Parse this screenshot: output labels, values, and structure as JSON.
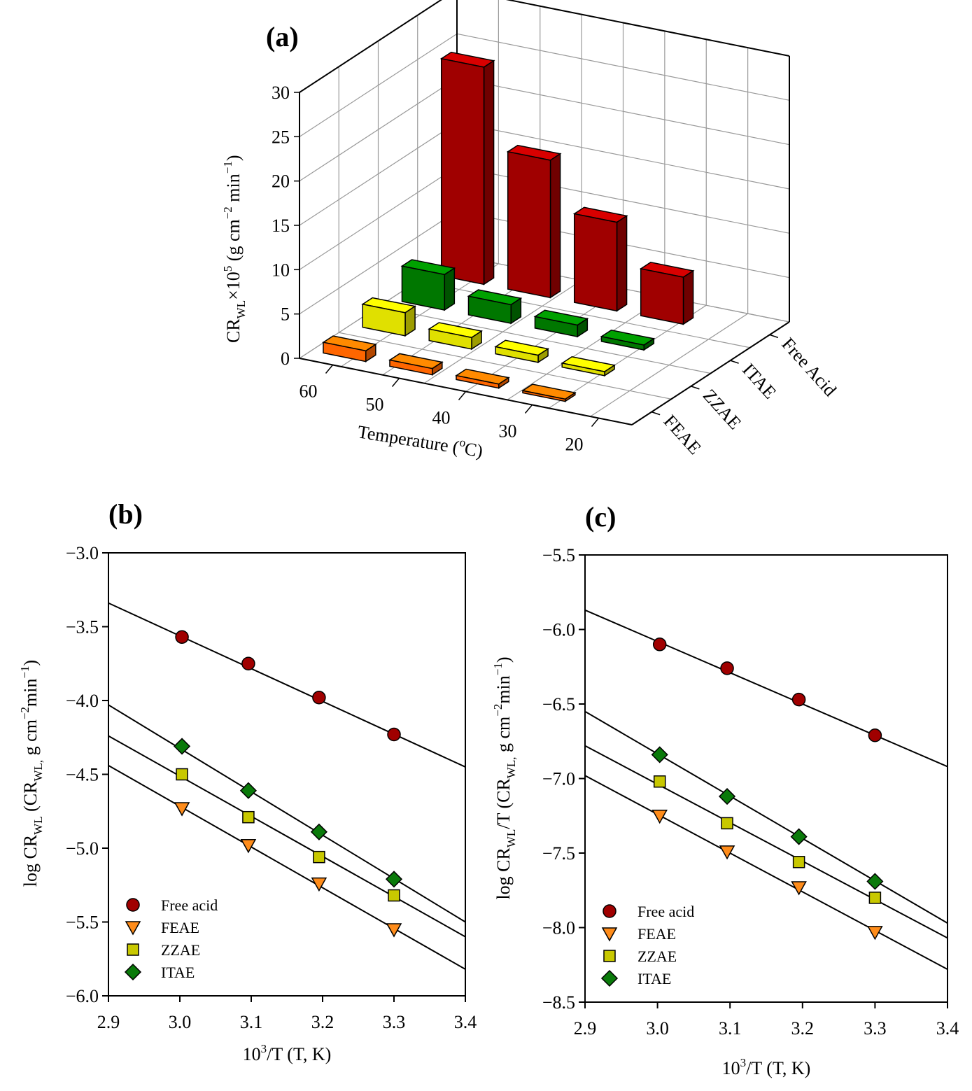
{
  "chart_data": [
    {
      "panel": "(a)",
      "type": "bar",
      "view": "3d",
      "zlabel": {
        "main": "CR",
        "sub": "WL",
        "mid": "×10",
        "sup": "5",
        "rest1": " (g cm",
        "sup2": "−2",
        "rest2": " min",
        "sup3": "−1",
        "rest3": ")"
      },
      "xlabel": {
        "main": "Temperature (",
        "sup": "o",
        "rest": "C)"
      },
      "zlim": [
        0,
        30
      ],
      "zticks": [
        "0",
        "5",
        "10",
        "15",
        "20",
        "25",
        "30"
      ],
      "categories": [
        "60",
        "50",
        "40",
        "30",
        "20"
      ],
      "series": [
        {
          "name": "FEAE",
          "color": "#ff6600",
          "values": [
            1.2,
            0.7,
            0.45,
            0.25,
            0.0
          ]
        },
        {
          "name": "ZZAE",
          "color": "#e0e000",
          "values": [
            2.6,
            1.3,
            0.8,
            0.45,
            0.0
          ]
        },
        {
          "name": "ITAE",
          "color": "#007700",
          "values": [
            4.0,
            2.1,
            1.3,
            0.55,
            0.0
          ]
        },
        {
          "name": "Free Acid",
          "color": "#a00000",
          "values": [
            24.5,
            15.5,
            10.0,
            5.3,
            0.0
          ]
        }
      ],
      "series_labels": [
        "Free Acid",
        "ITAE",
        "ZZAE",
        "FEAE"
      ]
    },
    {
      "panel": "(b)",
      "type": "scatter",
      "xlabel": {
        "main": "10",
        "sup": "3",
        "rest": "/T (T, K)"
      },
      "ylabel": {
        "main": "log CR",
        "sub": "WL",
        "rest1": " (CR",
        "sub2": "WL,",
        "rest2": " g cm",
        "sup": "−2",
        "rest3": "min",
        "sup2": "−1",
        "rest4": ")"
      },
      "xlim": [
        2.9,
        3.4
      ],
      "ylim": [
        -6.0,
        -3.0
      ],
      "xticks": [
        "2.9",
        "3.0",
        "3.1",
        "3.2",
        "3.3",
        "3.4"
      ],
      "yticks": [
        "−3.0",
        "−3.5",
        "−4.0",
        "−4.5",
        "−5.0",
        "−5.5",
        "−6.0"
      ],
      "x": [
        3.003,
        3.096,
        3.195,
        3.3
      ],
      "series": [
        {
          "name": "Free acid",
          "marker": "circle",
          "color": "#a00000",
          "values": [
            -3.57,
            -3.75,
            -3.98,
            -4.23
          ],
          "fit": [
            [
              2.9,
              -3.34
            ],
            [
              3.4,
              -4.45
            ]
          ]
        },
        {
          "name": "FEAE",
          "marker": "triangle-down",
          "color": "#ff8c1a",
          "values": [
            -4.73,
            -4.98,
            -5.24,
            -5.55
          ],
          "fit": [
            [
              2.9,
              -4.44
            ],
            [
              3.4,
              -5.82
            ]
          ]
        },
        {
          "name": "ZZAE",
          "marker": "square",
          "color": "#c8c800",
          "values": [
            -4.5,
            -4.79,
            -5.06,
            -5.32
          ],
          "fit": [
            [
              2.9,
              -4.24
            ],
            [
              3.4,
              -5.6
            ]
          ]
        },
        {
          "name": "ITAE",
          "marker": "diamond",
          "color": "#0a7a0a",
          "values": [
            -4.31,
            -4.61,
            -4.89,
            -5.21
          ],
          "fit": [
            [
              2.9,
              -4.03
            ],
            [
              3.4,
              -5.5
            ]
          ]
        }
      ]
    },
    {
      "panel": "(c)",
      "type": "scatter",
      "xlabel": {
        "main": "10",
        "sup": "3",
        "rest": "/T (T, K)"
      },
      "ylabel": {
        "main": "log CR",
        "sub": "WL",
        "rest1": "/T (CR",
        "sub2": "WL,",
        "rest2": " g cm",
        "sup": "−2",
        "rest3": "min",
        "sup2": "−1",
        "rest4": ")"
      },
      "xlim": [
        2.9,
        3.4
      ],
      "ylim": [
        -8.5,
        -5.5
      ],
      "xticks": [
        "2.9",
        "3.0",
        "3.1",
        "3.2",
        "3.3",
        "3.4"
      ],
      "yticks": [
        "−5.5",
        "−6.0",
        "−6.5",
        "−7.0",
        "−7.5",
        "−8.0",
        "−8.5"
      ],
      "x": [
        3.003,
        3.096,
        3.195,
        3.3
      ],
      "series": [
        {
          "name": "Free acid",
          "marker": "circle",
          "color": "#a00000",
          "values": [
            -6.1,
            -6.26,
            -6.47,
            -6.71
          ],
          "fit": [
            [
              2.9,
              -5.87
            ],
            [
              3.4,
              -6.92
            ]
          ]
        },
        {
          "name": "FEAE",
          "marker": "triangle-down",
          "color": "#ff8c1a",
          "values": [
            -7.25,
            -7.49,
            -7.73,
            -8.03
          ],
          "fit": [
            [
              2.9,
              -6.98
            ],
            [
              3.4,
              -8.28
            ]
          ]
        },
        {
          "name": "ZZAE",
          "marker": "square",
          "color": "#c8c800",
          "values": [
            -7.02,
            -7.3,
            -7.56,
            -7.8
          ],
          "fit": [
            [
              2.9,
              -6.78
            ],
            [
              3.4,
              -8.07
            ]
          ]
        },
        {
          "name": "ITAE",
          "marker": "diamond",
          "color": "#0a7a0a",
          "values": [
            -6.84,
            -7.12,
            -7.39,
            -7.69
          ],
          "fit": [
            [
              2.9,
              -6.55
            ],
            [
              3.4,
              -7.97
            ]
          ]
        }
      ]
    }
  ]
}
